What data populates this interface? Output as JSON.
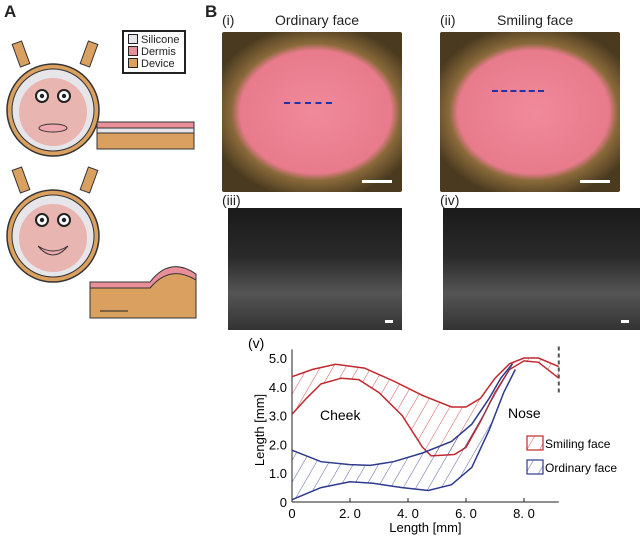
{
  "panels": {
    "a": "A",
    "b": "B"
  },
  "legend_a": [
    {
      "label": "Silicone",
      "color": "#e6e6ea"
    },
    {
      "label": "Dermis",
      "color": "#e88f9a"
    },
    {
      "label": "Device",
      "color": "#d9a060"
    }
  ],
  "photos": [
    {
      "tag": "(i)",
      "title": "Ordinary face"
    },
    {
      "tag": "(ii)",
      "title": "Smiling face"
    }
  ],
  "oct": [
    {
      "tag": "(iii)"
    },
    {
      "tag": "(iv)"
    }
  ],
  "chart_data": {
    "type": "line",
    "tag": "(v)",
    "xlabel": "Length  [mm]",
    "ylabel": "Length  [mm]",
    "xlim": [
      0,
      9.2
    ],
    "ylim": [
      0,
      5.3
    ],
    "xticks": [
      "0",
      "2. 0",
      "4. 0",
      "6. 0",
      "8. 0"
    ],
    "yticks": [
      "0",
      "1.0",
      "2.0",
      "3.0",
      "4.0",
      "5.0"
    ],
    "annotations": [
      "Cheek",
      "Nose"
    ],
    "legend_position": "right",
    "series": [
      {
        "name": "Smiling face",
        "color": "#c0282d",
        "upper": [
          [
            0,
            4.35
          ],
          [
            0.7,
            4.6
          ],
          [
            1.5,
            4.78
          ],
          [
            2.5,
            4.65
          ],
          [
            3.5,
            4.2
          ],
          [
            4.5,
            3.7
          ],
          [
            5.5,
            3.3
          ],
          [
            6,
            3.3
          ],
          [
            6.5,
            3.6
          ],
          [
            7,
            4.3
          ],
          [
            7.5,
            4.8
          ],
          [
            8,
            5.0
          ],
          [
            8.5,
            5.0
          ],
          [
            9.2,
            4.7
          ]
        ],
        "lower": [
          [
            0,
            3.05
          ],
          [
            0.5,
            3.6
          ],
          [
            1,
            4.1
          ],
          [
            1.7,
            4.3
          ],
          [
            2.3,
            4.25
          ],
          [
            3,
            3.8
          ],
          [
            3.8,
            3.0
          ],
          [
            4.5,
            1.9
          ],
          [
            4.8,
            1.6
          ],
          [
            5.6,
            1.65
          ],
          [
            6,
            1.9
          ],
          [
            6.5,
            2.8
          ],
          [
            7,
            3.8
          ],
          [
            7.5,
            4.6
          ],
          [
            8,
            4.9
          ],
          [
            8.5,
            4.85
          ],
          [
            9.2,
            4.3
          ]
        ]
      },
      {
        "name": "Ordinary face",
        "color": "#2e3a8c",
        "upper": [
          [
            0,
            1.8
          ],
          [
            1,
            1.4
          ],
          [
            2,
            1.3
          ],
          [
            2.7,
            1.27
          ],
          [
            3.5,
            1.4
          ],
          [
            4.5,
            1.7
          ],
          [
            5.5,
            2.1
          ],
          [
            6.2,
            2.7
          ],
          [
            6.8,
            3.6
          ],
          [
            7.2,
            4.3
          ],
          [
            7.6,
            4.8
          ]
        ],
        "lower": [
          [
            0,
            0.08
          ],
          [
            1,
            0.5
          ],
          [
            2,
            0.7
          ],
          [
            2.8,
            0.65
          ],
          [
            3.8,
            0.5
          ],
          [
            4.7,
            0.4
          ],
          [
            5.5,
            0.6
          ],
          [
            6.2,
            1.2
          ],
          [
            6.8,
            2.5
          ],
          [
            7.3,
            3.8
          ],
          [
            7.7,
            4.6
          ]
        ]
      }
    ]
  }
}
